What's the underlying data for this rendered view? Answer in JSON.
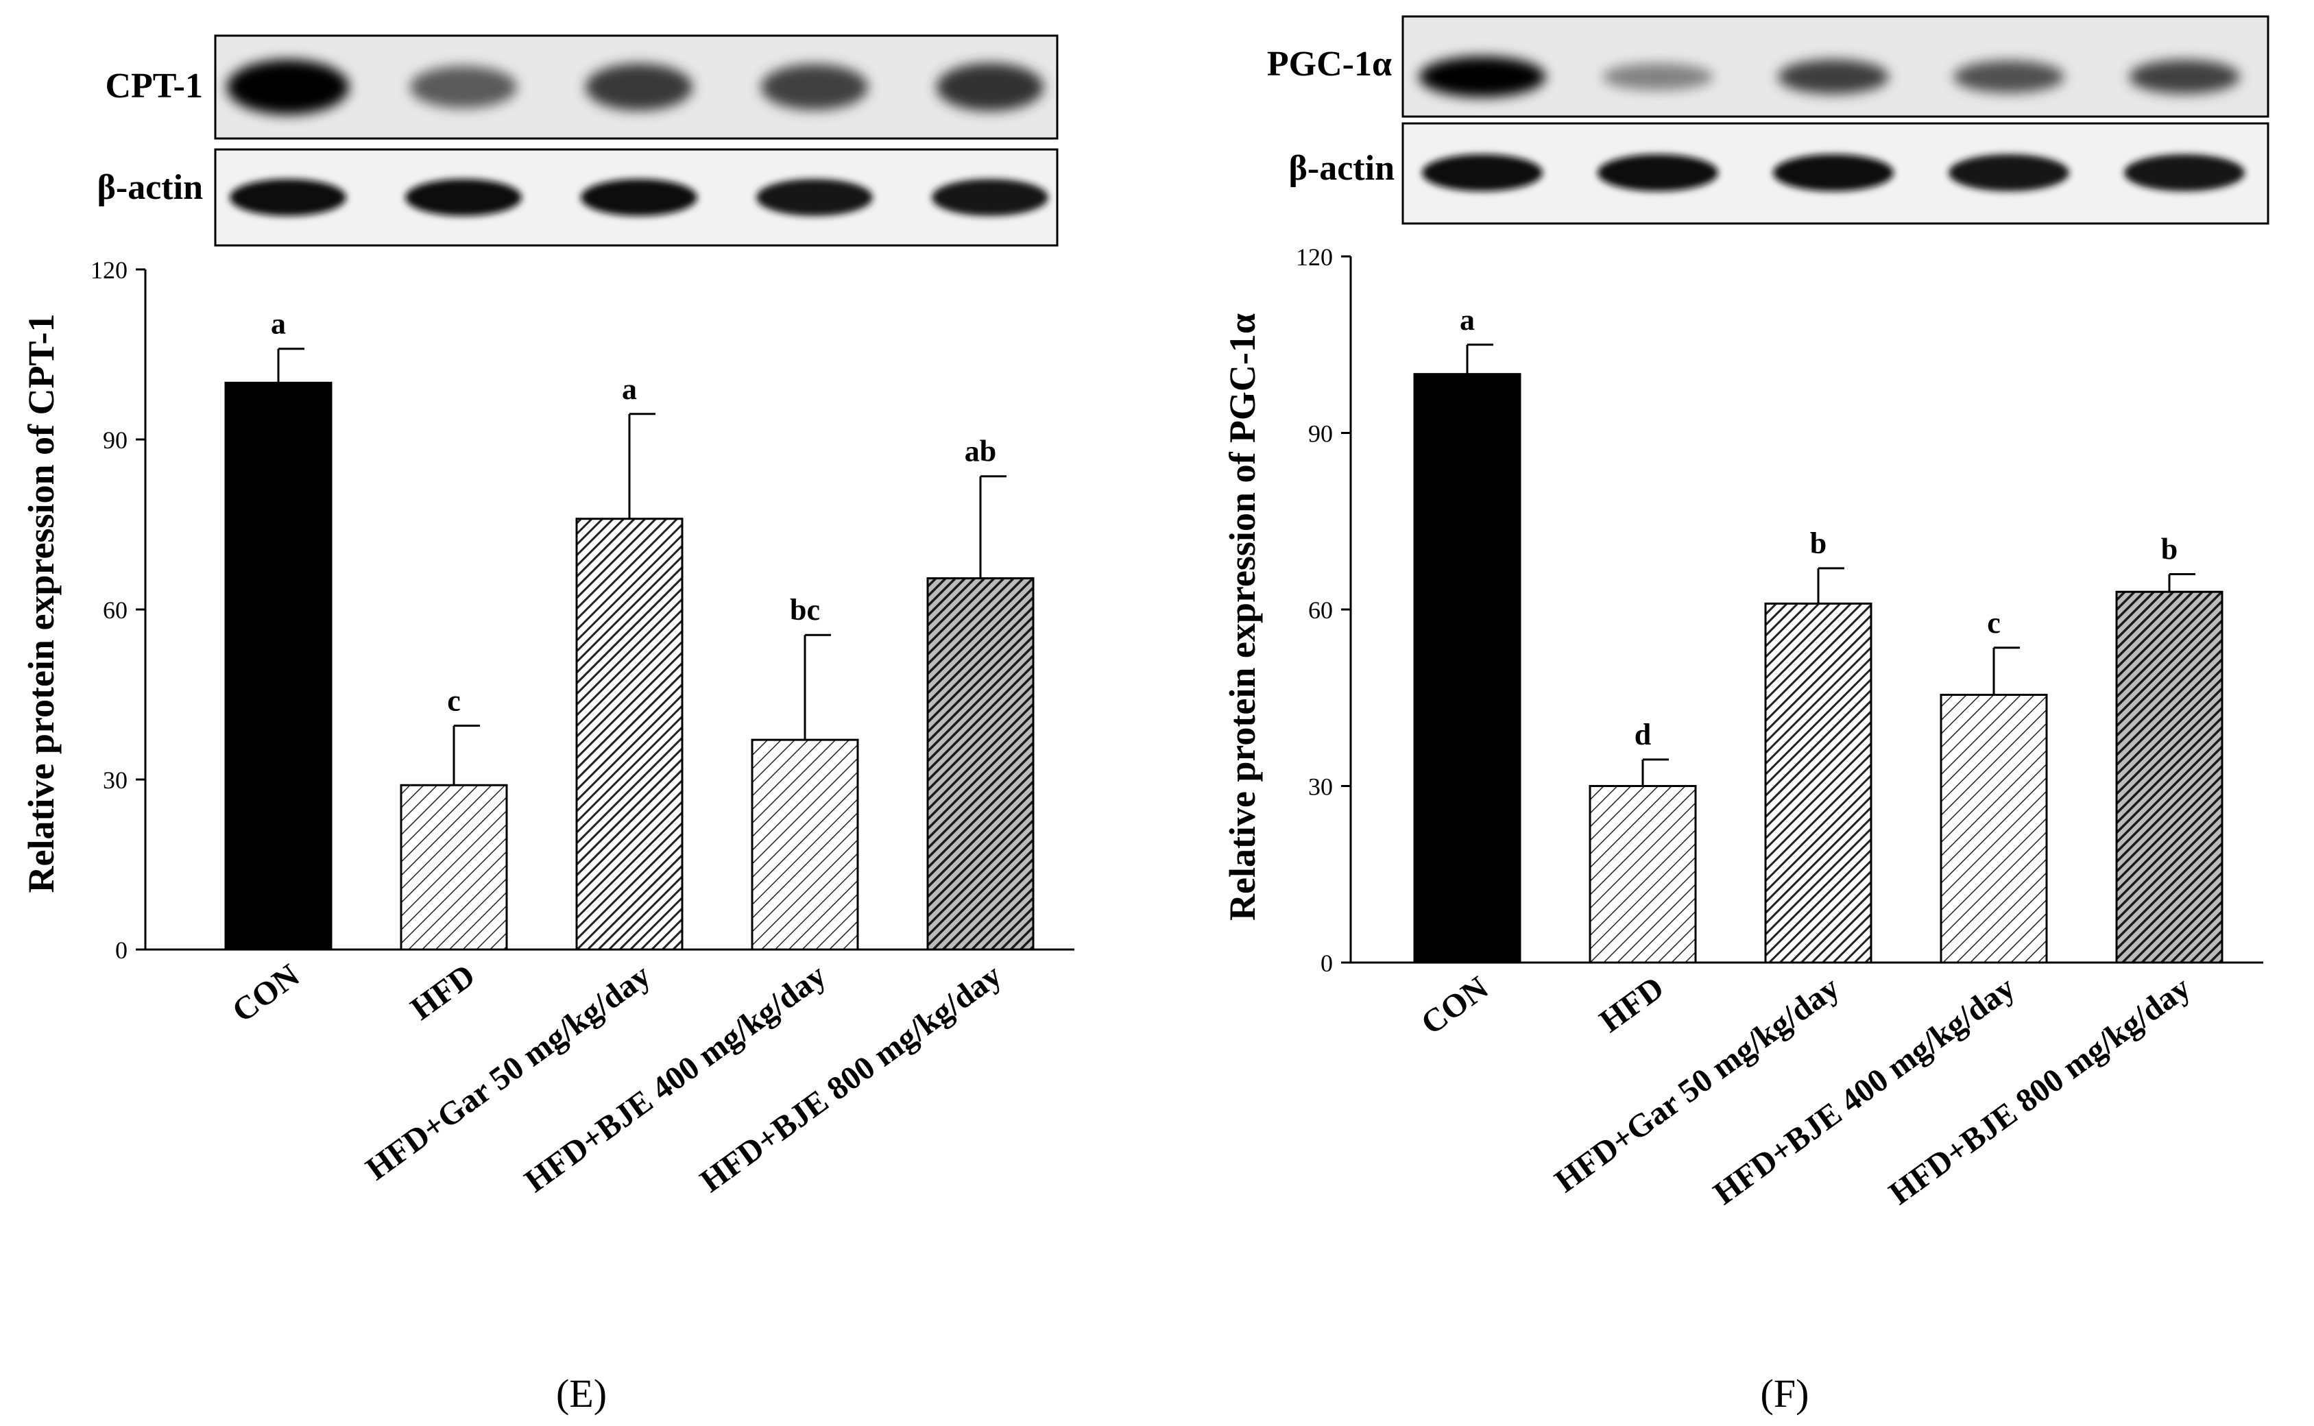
{
  "chart_data": [
    {
      "type": "bar",
      "panel": "(E)",
      "ylabel": "Relative protein expression of CPT-1",
      "xlabel": "",
      "ylim": [
        0,
        120
      ],
      "yticks": [
        0,
        30,
        60,
        90,
        120
      ],
      "categories": [
        "CON",
        "HFD",
        "HFD+Gar 50 mg/kg/day",
        "HFD+BJE 400 mg/kg/day",
        "HFD+BJE 800 mg/kg/day"
      ],
      "series": [
        {
          "name": "CPT-1",
          "values": [
            100,
            29,
            76,
            37,
            65.5
          ],
          "errors": [
            6,
            10.5,
            18.5,
            18.5,
            18
          ],
          "significance": [
            "a",
            "c",
            "a",
            "bc",
            "ab"
          ]
        }
      ],
      "fills": [
        "solid",
        "sparse-hatch",
        "dense-hatch",
        "sparse-hatch",
        "dense-hatch-dark"
      ],
      "blot": {
        "target_label": "CPT-1",
        "control_label": "β-actin",
        "target_intensity": [
          1.0,
          0.55,
          0.72,
          0.68,
          0.75
        ],
        "control_intensity": [
          0.92,
          0.92,
          0.92,
          0.9,
          0.9
        ]
      }
    },
    {
      "type": "bar",
      "panel": "(F)",
      "ylabel": "Relative protein expression of PGC-1α",
      "xlabel": "",
      "ylim": [
        0,
        120
      ],
      "yticks": [
        0,
        30,
        60,
        90,
        120
      ],
      "categories": [
        "CON",
        "HFD",
        "HFD+Gar 50 mg/kg/day",
        "HFD+BJE 400 mg/kg/day",
        "HFD+BJE 800 mg/kg/day"
      ],
      "series": [
        {
          "name": "PGC-1α",
          "values": [
            100,
            30,
            61,
            45.5,
            63
          ],
          "errors": [
            5,
            4.5,
            6,
            8,
            3
          ],
          "significance": [
            "a",
            "d",
            "b",
            "c",
            "b"
          ]
        }
      ],
      "fills": [
        "solid",
        "sparse-hatch",
        "dense-hatch",
        "sparse-hatch",
        "dense-hatch-dark"
      ],
      "blot": {
        "target_label": "PGC-1α",
        "control_label": "β-actin",
        "target_intensity": [
          1.0,
          0.35,
          0.7,
          0.6,
          0.68
        ],
        "control_intensity": [
          0.92,
          0.92,
          0.92,
          0.9,
          0.9
        ]
      }
    }
  ]
}
